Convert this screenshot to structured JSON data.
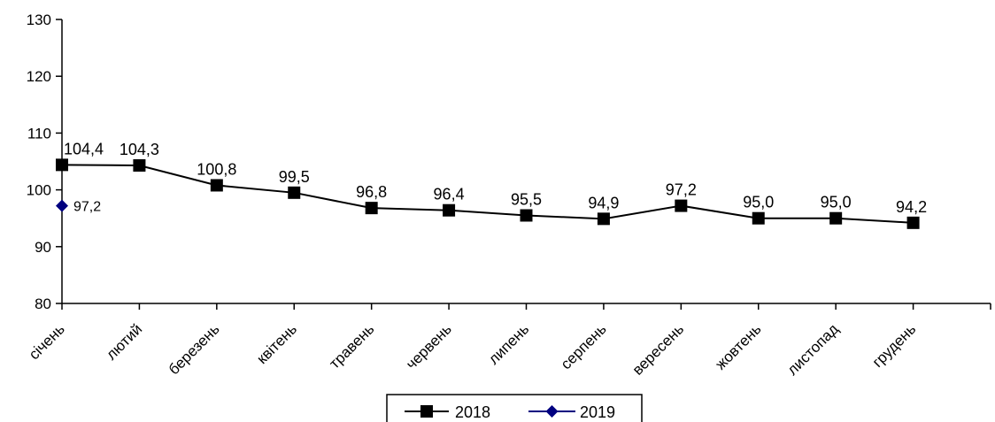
{
  "chart_data": {
    "type": "line",
    "categories": [
      "січень",
      "лютий",
      "березень",
      "квітень",
      "травень",
      "червень",
      "липень",
      "серпень",
      "вересень",
      "жовтень",
      "листопад",
      "грудень"
    ],
    "series": [
      {
        "name": "2018",
        "values": [
          104.4,
          104.3,
          100.8,
          99.5,
          96.8,
          96.4,
          95.5,
          94.9,
          97.2,
          95.0,
          95.0,
          94.2
        ],
        "labels": [
          "104,4",
          "104,3",
          "100,8",
          "99,5",
          "96,8",
          "96,4",
          "95,5",
          "94,9",
          "97,2",
          "95,0",
          "95,0",
          "94,2"
        ],
        "color": "#000000",
        "marker": "square"
      },
      {
        "name": "2019",
        "values": [
          97.2,
          null,
          null,
          null,
          null,
          null,
          null,
          null,
          null,
          null,
          null,
          null
        ],
        "labels": [
          "97,2",
          "",
          "",
          "",
          "",
          "",
          "",
          "",
          "",
          "",
          "",
          ""
        ],
        "color": "#000080",
        "marker": "diamond"
      }
    ],
    "ylim": [
      80,
      130
    ],
    "yticks": [
      "80",
      "90",
      "100",
      "110",
      "120",
      "130"
    ],
    "ytick_values": [
      80,
      90,
      100,
      110,
      120,
      130
    ],
    "grid": false,
    "legend_position": "bottom"
  }
}
